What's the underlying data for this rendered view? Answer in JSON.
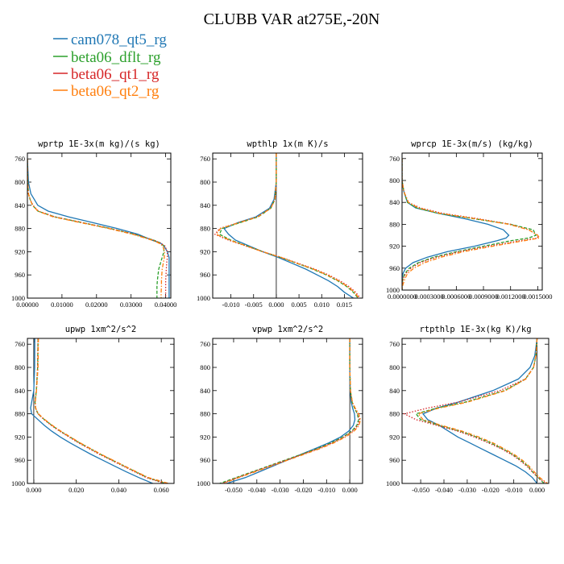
{
  "figure": {
    "title": "CLUBB VAR at275E,-20N"
  },
  "legend": [
    {
      "name": "cam078_qt5_rg",
      "color": "#1f77b4",
      "dash": "solid"
    },
    {
      "name": "beta06_dflt_rg",
      "color": "#2ca02c",
      "dash": "dash"
    },
    {
      "name": "beta06_qt1_rg",
      "color": "#d62728",
      "dash": "dot"
    },
    {
      "name": "beta06_qt2_rg",
      "color": "#ff7f0e",
      "dash": "dashdot"
    }
  ],
  "chart_data": [
    {
      "type": "line",
      "title": "wprtp  1E-3x(m kg)/(s kg)",
      "xlim": [
        0,
        0.0415
      ],
      "ylim": [
        1000,
        750
      ],
      "xticks": [
        "0.00000",
        "0.01000",
        "0.02000",
        "0.03000",
        "0.04000"
      ],
      "xtick_values": [
        0,
        0.01,
        0.02,
        0.03,
        0.04
      ],
      "yticks": [
        760,
        800,
        840,
        880,
        920,
        960,
        1000
      ],
      "y": [
        760,
        800,
        820,
        830,
        840,
        850,
        860,
        870,
        880,
        890,
        900,
        905,
        910,
        920,
        930,
        940,
        950,
        960,
        970,
        980,
        990,
        1000
      ],
      "series": [
        {
          "name": "cam078_qt5_rg",
          "x": [
            0,
            0.0003,
            0.001,
            0.002,
            0.003,
            0.006,
            0.012,
            0.019,
            0.026,
            0.032,
            0.036,
            0.0385,
            0.0395,
            0.0405,
            0.041,
            0.041,
            0.041,
            0.041,
            0.041,
            0.041,
            0.041,
            0.041
          ]
        },
        {
          "name": "beta06_dflt_rg",
          "x": [
            0,
            0.0001,
            0.0003,
            0.0008,
            0.0015,
            0.003,
            0.008,
            0.016,
            0.024,
            0.031,
            0.0365,
            0.0385,
            0.0395,
            0.0395,
            0.039,
            0.0385,
            0.038,
            0.0378,
            0.0376,
            0.0375,
            0.0375,
            0.0375
          ]
        },
        {
          "name": "beta06_qt1_rg",
          "x": [
            0,
            0.0001,
            0.0003,
            0.0008,
            0.0016,
            0.0032,
            0.008,
            0.016,
            0.024,
            0.031,
            0.0365,
            0.0385,
            0.0398,
            0.0405,
            0.0405,
            0.0403,
            0.0402,
            0.0401,
            0.04,
            0.04,
            0.04,
            0.04
          ]
        },
        {
          "name": "beta06_qt2_rg",
          "x": [
            0,
            0.0001,
            0.0003,
            0.0008,
            0.0015,
            0.003,
            0.0075,
            0.0155,
            0.0235,
            0.0305,
            0.036,
            0.038,
            0.0392,
            0.0397,
            0.0396,
            0.0393,
            0.039,
            0.0389,
            0.0388,
            0.0388,
            0.0387,
            0.0387
          ]
        }
      ]
    },
    {
      "type": "line",
      "title": "wpthlp  1x(m K)/s",
      "xlim": [
        -0.014,
        0.019
      ],
      "ylim": [
        1000,
        750
      ],
      "xticks": [
        "-0.010",
        "-0.005",
        "0.000",
        "0.005",
        "0.010",
        "0.015"
      ],
      "xtick_values": [
        -0.01,
        -0.005,
        0,
        0.005,
        0.01,
        0.015
      ],
      "yticks": [
        760,
        800,
        840,
        880,
        920,
        960,
        1000
      ],
      "y": [
        750,
        800,
        830,
        845,
        860,
        870,
        880,
        890,
        900,
        910,
        920,
        930,
        940,
        950,
        960,
        970,
        980,
        990,
        1000
      ],
      "series": [
        {
          "name": "cam078_qt5_rg",
          "x": [
            0,
            0,
            -0.0005,
            -0.0015,
            -0.0045,
            -0.0085,
            -0.0115,
            -0.0105,
            -0.009,
            -0.006,
            -0.003,
            0.0005,
            0.0035,
            0.0065,
            0.009,
            0.0115,
            0.0135,
            0.015,
            0.017
          ]
        },
        {
          "name": "beta06_dflt_rg",
          "x": [
            0,
            0,
            -0.0003,
            -0.0012,
            -0.004,
            -0.008,
            -0.012,
            -0.0125,
            -0.01,
            -0.0065,
            -0.003,
            0.001,
            0.0045,
            0.008,
            0.011,
            0.0135,
            0.0155,
            0.017,
            0.018
          ]
        },
        {
          "name": "beta06_qt1_rg",
          "x": [
            0,
            0,
            -0.0003,
            -0.0012,
            -0.0042,
            -0.0083,
            -0.0125,
            -0.0135,
            -0.0105,
            -0.0068,
            -0.003,
            0.0012,
            0.0048,
            0.0085,
            0.0115,
            0.014,
            0.016,
            0.0175,
            0.0185
          ]
        },
        {
          "name": "beta06_qt2_rg",
          "x": [
            0,
            0,
            -0.0003,
            -0.0012,
            -0.0041,
            -0.0082,
            -0.0123,
            -0.0132,
            -0.0103,
            -0.0066,
            -0.003,
            0.0011,
            0.0046,
            0.0082,
            0.0112,
            0.0137,
            0.0157,
            0.0172,
            0.0182
          ]
        }
      ]
    },
    {
      "type": "line",
      "title": "wprcp  1E-3x(m/s) (kg/kg)",
      "xlim": [
        0,
        0.00155
      ],
      "ylim": [
        1000,
        750
      ],
      "xticks": [
        "0.0000000",
        "0.0003000",
        "0.0006000",
        "0.0009000",
        "0.0012000",
        "0.0015000"
      ],
      "xtick_values": [
        0,
        0.0003,
        0.0006,
        0.0009,
        0.0012,
        0.0015
      ],
      "yticks": [
        760,
        800,
        840,
        880,
        920,
        960,
        1000
      ],
      "y": [
        760,
        800,
        820,
        840,
        850,
        860,
        870,
        880,
        890,
        900,
        905,
        910,
        920,
        930,
        940,
        950,
        960,
        970,
        980,
        990,
        1000
      ],
      "series": [
        {
          "name": "cam078_qt5_rg",
          "x": [
            0,
            0,
            2e-05,
            6e-05,
            0.00015,
            0.0004,
            0.0007,
            0.00095,
            0.00112,
            0.00118,
            0.00115,
            0.00105,
            0.0008,
            0.0005,
            0.00028,
            0.00012,
            4e-05,
            1e-05,
            0,
            0,
            0
          ]
        },
        {
          "name": "beta06_dflt_rg",
          "x": [
            0,
            0,
            2e-05,
            6e-05,
            0.00016,
            0.0004,
            0.0008,
            0.0012,
            0.00145,
            0.00148,
            0.0014,
            0.0012,
            0.0009,
            0.0006,
            0.00035,
            0.00018,
            8e-05,
            3e-05,
            1e-05,
            0,
            0
          ]
        },
        {
          "name": "beta06_qt1_rg",
          "x": [
            0,
            0,
            2e-05,
            7e-05,
            0.0002,
            0.00045,
            0.00085,
            0.0012,
            0.0014,
            0.0015,
            0.0015,
            0.0013,
            0.00095,
            0.00063,
            0.00038,
            0.0002,
            0.0001,
            4e-05,
            1e-05,
            0,
            0
          ]
        },
        {
          "name": "beta06_qt2_rg",
          "x": [
            0,
            0,
            2e-05,
            7e-05,
            0.00018,
            0.00042,
            0.00082,
            0.00118,
            0.0014,
            0.0015,
            0.00152,
            0.00135,
            0.001,
            0.00068,
            0.00043,
            0.00025,
            0.00013,
            6e-05,
            3e-05,
            1e-05,
            0
          ]
        }
      ]
    },
    {
      "type": "line",
      "title": "upwp  1xm^2/s^2",
      "xlim": [
        -0.003,
        0.066
      ],
      "ylim": [
        1000,
        750
      ],
      "xticks": [
        "0.000",
        "0.020",
        "0.040",
        "0.060"
      ],
      "xtick_values": [
        0,
        0.02,
        0.04,
        0.06
      ],
      "yticks": [
        760,
        800,
        840,
        880,
        920,
        960,
        1000
      ],
      "y": [
        750,
        800,
        840,
        860,
        870,
        880,
        890,
        900,
        910,
        920,
        930,
        940,
        950,
        960,
        970,
        980,
        990,
        1000
      ],
      "series": [
        {
          "name": "cam078_qt5_rg",
          "x": [
            0.0005,
            0.0004,
            0,
            -0.001,
            -0.0015,
            -0.001,
            0.002,
            0.005,
            0.0085,
            0.0125,
            0.017,
            0.022,
            0.027,
            0.0325,
            0.038,
            0.0435,
            0.0495,
            0.056
          ]
        },
        {
          "name": "beta06_dflt_rg",
          "x": [
            0.002,
            0.0018,
            0.0012,
            0.0006,
            0.0008,
            0.002,
            0.005,
            0.0085,
            0.0125,
            0.017,
            0.0215,
            0.0265,
            0.0315,
            0.037,
            0.0425,
            0.048,
            0.0535,
            0.062
          ]
        },
        {
          "name": "beta06_qt1_rg",
          "x": [
            0.002,
            0.0018,
            0.0012,
            0.0006,
            0.0008,
            0.002,
            0.0048,
            0.0083,
            0.0122,
            0.0166,
            0.021,
            0.026,
            0.031,
            0.0365,
            0.042,
            0.0475,
            0.053,
            0.0615
          ]
        },
        {
          "name": "beta06_qt2_rg",
          "x": [
            0.0022,
            0.002,
            0.0013,
            0.0007,
            0.0009,
            0.0022,
            0.0052,
            0.0088,
            0.0128,
            0.0173,
            0.0218,
            0.0268,
            0.0318,
            0.0373,
            0.0428,
            0.0483,
            0.054,
            0.0635
          ]
        }
      ]
    },
    {
      "type": "line",
      "title": "vpwp  1xm^2/s^2",
      "xlim": [
        -0.059,
        0.0055
      ],
      "ylim": [
        1000,
        750
      ],
      "xticks": [
        "-0.050",
        "-0.040",
        "-0.030",
        "-0.020",
        "-0.010",
        "0.000"
      ],
      "xtick_values": [
        -0.05,
        -0.04,
        -0.03,
        -0.02,
        -0.01,
        0
      ],
      "yticks": [
        760,
        800,
        840,
        880,
        920,
        960,
        1000
      ],
      "y": [
        750,
        800,
        840,
        860,
        870,
        880,
        890,
        900,
        910,
        920,
        930,
        940,
        950,
        960,
        970,
        980,
        990,
        1000
      ],
      "series": [
        {
          "name": "cam078_qt5_rg",
          "x": [
            0,
            0,
            0.0002,
            0.0006,
            0.0012,
            0.002,
            0.0022,
            0.0015,
            -0.0005,
            -0.004,
            -0.009,
            -0.015,
            -0.021,
            -0.027,
            -0.033,
            -0.039,
            -0.045,
            -0.053
          ]
        },
        {
          "name": "beta06_dflt_rg",
          "x": [
            0,
            0,
            0.0003,
            0.001,
            0.002,
            0.0032,
            0.0038,
            0.003,
            0.0008,
            -0.003,
            -0.008,
            -0.014,
            -0.021,
            -0.028,
            -0.035,
            -0.042,
            -0.049,
            -0.056
          ]
        },
        {
          "name": "beta06_qt1_rg",
          "x": [
            0,
            0,
            0.0003,
            0.0011,
            0.0022,
            0.0035,
            0.0042,
            0.0035,
            0.0012,
            -0.0025,
            -0.0075,
            -0.0135,
            -0.0205,
            -0.0275,
            -0.0345,
            -0.0415,
            -0.0485,
            -0.055
          ]
        },
        {
          "name": "beta06_qt2_rg",
          "x": [
            0,
            0,
            0.0003,
            0.0011,
            0.0023,
            0.0038,
            0.0046,
            0.004,
            0.0018,
            -0.0018,
            -0.0068,
            -0.0128,
            -0.0198,
            -0.0268,
            -0.0338,
            -0.0408,
            -0.0478,
            -0.0545
          ]
        }
      ]
    },
    {
      "type": "line",
      "title": "rtpthlp  1E-3x(kg K)/kg",
      "xlim": [
        -0.058,
        0.005
      ],
      "ylim": [
        1000,
        750
      ],
      "xticks": [
        "-0.050",
        "-0.040",
        "-0.030",
        "-0.020",
        "-0.010",
        "0.000"
      ],
      "xtick_values": [
        -0.05,
        -0.04,
        -0.03,
        -0.02,
        -0.01,
        0
      ],
      "yticks": [
        760,
        800,
        840,
        880,
        920,
        960,
        1000
      ],
      "y": [
        750,
        780,
        800,
        820,
        840,
        860,
        870,
        880,
        890,
        900,
        910,
        920,
        930,
        940,
        950,
        960,
        970,
        980,
        990,
        1000
      ],
      "series": [
        {
          "name": "cam078_qt5_rg",
          "x": [
            0,
            -0.001,
            -0.003,
            -0.008,
            -0.019,
            -0.034,
            -0.043,
            -0.049,
            -0.047,
            -0.042,
            -0.038,
            -0.034,
            -0.029,
            -0.024,
            -0.019,
            -0.014,
            -0.009,
            -0.005,
            -0.002,
            0
          ]
        },
        {
          "name": "beta06_dflt_rg",
          "x": [
            0,
            -0.0005,
            -0.0015,
            -0.005,
            -0.014,
            -0.031,
            -0.043,
            -0.052,
            -0.05,
            -0.042,
            -0.033,
            -0.026,
            -0.02,
            -0.015,
            -0.0105,
            -0.007,
            -0.004,
            -0.002,
            0.0005,
            0.003
          ]
        },
        {
          "name": "beta06_qt1_rg",
          "x": [
            0,
            -0.0005,
            -0.0015,
            -0.005,
            -0.016,
            -0.034,
            -0.047,
            -0.057,
            -0.052,
            -0.043,
            -0.034,
            -0.027,
            -0.021,
            -0.0155,
            -0.011,
            -0.0075,
            -0.0045,
            -0.002,
            0.0005,
            0.004
          ]
        },
        {
          "name": "beta06_qt2_rg",
          "x": [
            0,
            -0.0005,
            -0.0015,
            -0.0048,
            -0.0135,
            -0.03,
            -0.042,
            -0.051,
            -0.049,
            -0.041,
            -0.032,
            -0.025,
            -0.019,
            -0.0142,
            -0.0098,
            -0.0063,
            -0.0035,
            -0.0012,
            0.0012,
            0.0045
          ]
        }
      ]
    }
  ]
}
